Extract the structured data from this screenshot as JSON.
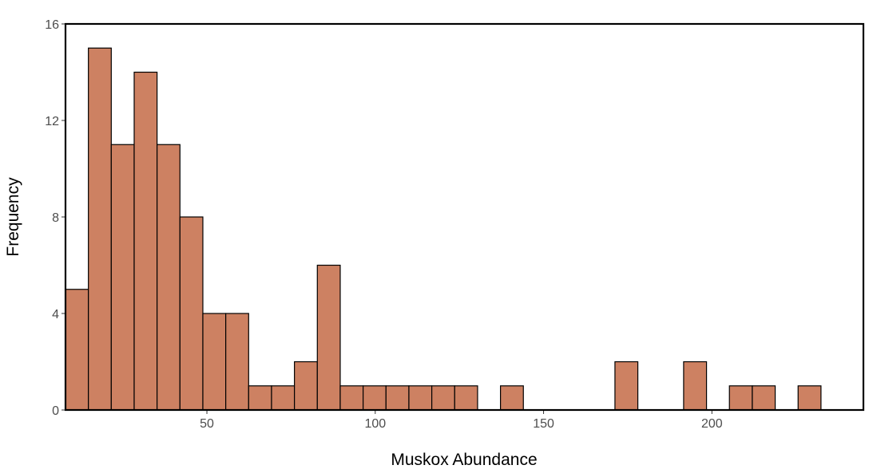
{
  "chart_data": {
    "type": "bar",
    "subtype": "histogram",
    "title": "",
    "xlabel": "Muskox Abundance",
    "ylabel": "Frequency",
    "bin_width": 6.8,
    "bins": [
      {
        "center": 11.4,
        "count": 5
      },
      {
        "center": 18.2,
        "count": 15
      },
      {
        "center": 25.0,
        "count": 11
      },
      {
        "center": 31.8,
        "count": 14
      },
      {
        "center": 38.6,
        "count": 11
      },
      {
        "center": 45.4,
        "count": 8
      },
      {
        "center": 52.2,
        "count": 4
      },
      {
        "center": 59.0,
        "count": 4
      },
      {
        "center": 65.8,
        "count": 1
      },
      {
        "center": 72.6,
        "count": 1
      },
      {
        "center": 79.4,
        "count": 2
      },
      {
        "center": 86.2,
        "count": 6
      },
      {
        "center": 93.0,
        "count": 1
      },
      {
        "center": 99.8,
        "count": 1
      },
      {
        "center": 106.6,
        "count": 1
      },
      {
        "center": 113.4,
        "count": 1
      },
      {
        "center": 120.2,
        "count": 1
      },
      {
        "center": 127.0,
        "count": 1
      },
      {
        "center": 133.8,
        "count": 0
      },
      {
        "center": 140.6,
        "count": 1
      },
      {
        "center": 147.4,
        "count": 0
      },
      {
        "center": 154.2,
        "count": 0
      },
      {
        "center": 161.0,
        "count": 0
      },
      {
        "center": 167.8,
        "count": 0
      },
      {
        "center": 174.6,
        "count": 2
      },
      {
        "center": 181.4,
        "count": 0
      },
      {
        "center": 188.2,
        "count": 0
      },
      {
        "center": 195.0,
        "count": 2
      },
      {
        "center": 201.8,
        "count": 0
      },
      {
        "center": 208.6,
        "count": 1
      },
      {
        "center": 215.4,
        "count": 1
      },
      {
        "center": 222.2,
        "count": 0
      },
      {
        "center": 229.0,
        "count": 1
      }
    ],
    "xlim": [
      8.0,
      245.0
    ],
    "ylim": [
      0,
      16
    ],
    "xticks": [
      50,
      100,
      150,
      200
    ],
    "xtick_labels": [
      "50",
      "100",
      "150",
      "200"
    ],
    "yticks": [
      0,
      4,
      8,
      12,
      16
    ],
    "ytick_labels": [
      "0",
      "4",
      "8",
      "12",
      "16"
    ],
    "grid": false,
    "bar_color": "#cd8162",
    "bar_edge_color": "#000000",
    "panel_border_color": "#000000"
  }
}
